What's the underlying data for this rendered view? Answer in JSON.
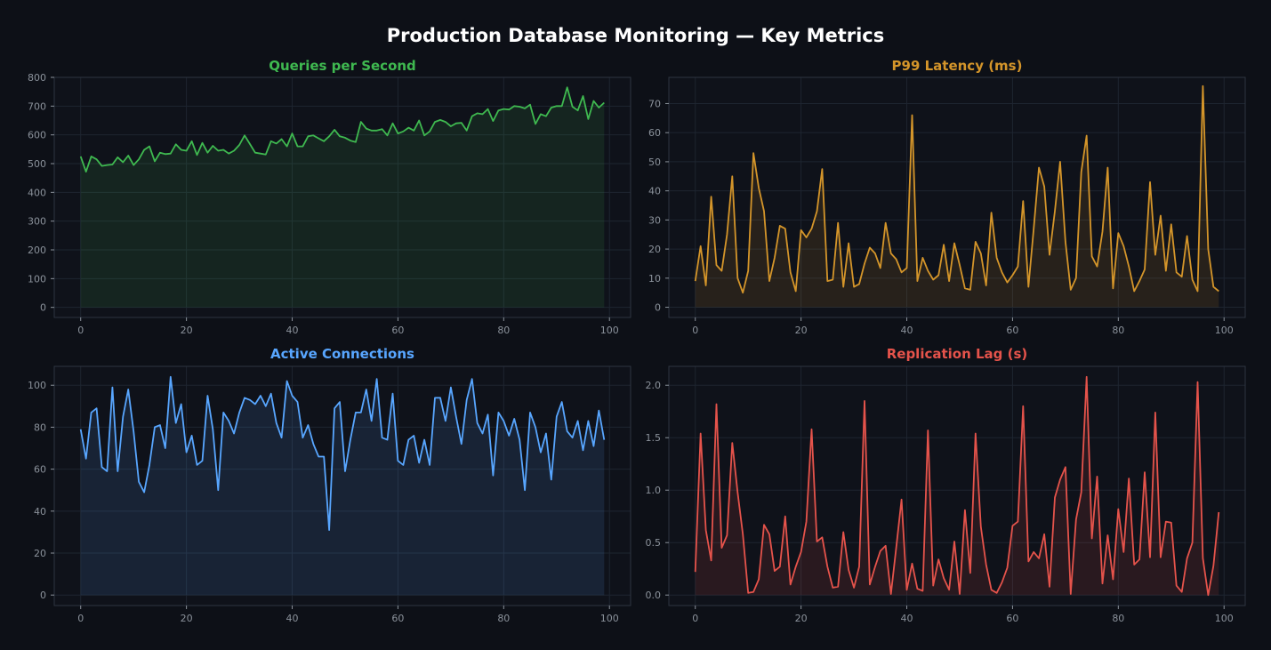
{
  "dashboard": {
    "title": "Production Database Monitoring — Key Metrics"
  },
  "chart_data": [
    {
      "type": "area",
      "title": "Queries per Second",
      "xlabel": "",
      "ylabel": "",
      "color": "#3fb950",
      "xlim": [
        -5,
        104
      ],
      "ylim": [
        -35,
        800
      ],
      "xticks": [
        0,
        20,
        40,
        60,
        80,
        100
      ],
      "yticks": [
        0,
        100,
        200,
        300,
        400,
        500,
        600,
        700,
        800
      ],
      "grid": true,
      "legend": "none",
      "x": [
        0,
        1,
        2,
        3,
        4,
        5,
        6,
        7,
        8,
        9,
        10,
        11,
        12,
        13,
        14,
        15,
        16,
        17,
        18,
        19,
        20,
        21,
        22,
        23,
        24,
        25,
        26,
        27,
        28,
        29,
        30,
        31,
        32,
        33,
        34,
        35,
        36,
        37,
        38,
        39,
        40,
        41,
        42,
        43,
        44,
        45,
        46,
        47,
        48,
        49,
        50,
        51,
        52,
        53,
        54,
        55,
        56,
        57,
        58,
        59,
        60,
        61,
        62,
        63,
        64,
        65,
        66,
        67,
        68,
        69,
        70,
        71,
        72,
        73,
        74,
        75,
        76,
        77,
        78,
        79,
        80,
        81,
        82,
        83,
        84,
        85,
        86,
        87,
        88,
        89,
        90,
        91,
        92,
        93,
        94,
        95,
        96,
        97,
        98,
        99
      ],
      "values": [
        525,
        472,
        525,
        515,
        492,
        495,
        497,
        522,
        505,
        528,
        495,
        515,
        548,
        560,
        508,
        538,
        533,
        535,
        567,
        548,
        545,
        578,
        530,
        572,
        538,
        562,
        545,
        548,
        535,
        545,
        565,
        598,
        568,
        538,
        535,
        532,
        578,
        570,
        585,
        560,
        605,
        560,
        560,
        595,
        598,
        588,
        578,
        595,
        618,
        595,
        590,
        580,
        575,
        645,
        622,
        615,
        615,
        620,
        598,
        640,
        605,
        612,
        625,
        615,
        650,
        598,
        612,
        645,
        652,
        645,
        630,
        640,
        642,
        615,
        665,
        675,
        672,
        690,
        648,
        685,
        690,
        688,
        700,
        698,
        692,
        705,
        638,
        672,
        665,
        695,
        700,
        700,
        765,
        698,
        685,
        735,
        655,
        718,
        695,
        712
      ]
    },
    {
      "type": "area",
      "title": "P99 Latency (ms)",
      "xlabel": "",
      "ylabel": "",
      "color": "#d4952a",
      "xlim": [
        -5,
        104
      ],
      "ylim": [
        -3.5,
        79
      ],
      "xticks": [
        0,
        20,
        40,
        60,
        80,
        100
      ],
      "yticks": [
        0,
        10,
        20,
        30,
        40,
        50,
        60,
        70
      ],
      "grid": true,
      "legend": "none",
      "x": [
        0,
        1,
        2,
        3,
        4,
        5,
        6,
        7,
        8,
        9,
        10,
        11,
        12,
        13,
        14,
        15,
        16,
        17,
        18,
        19,
        20,
        21,
        22,
        23,
        24,
        25,
        26,
        27,
        28,
        29,
        30,
        31,
        32,
        33,
        34,
        35,
        36,
        37,
        38,
        39,
        40,
        41,
        42,
        43,
        44,
        45,
        46,
        47,
        48,
        49,
        50,
        51,
        52,
        53,
        54,
        55,
        56,
        57,
        58,
        59,
        60,
        61,
        62,
        63,
        64,
        65,
        66,
        67,
        68,
        69,
        70,
        71,
        72,
        73,
        74,
        75,
        76,
        77,
        78,
        79,
        80,
        81,
        82,
        83,
        84,
        85,
        86,
        87,
        88,
        89,
        90,
        91,
        92,
        93,
        94,
        95,
        96,
        97,
        98,
        99
      ],
      "values": [
        9,
        21,
        7.5,
        38,
        14.5,
        12.5,
        25,
        45,
        10,
        5,
        12.5,
        53,
        41,
        33,
        9,
        17,
        28,
        27,
        12,
        5.5,
        26.5,
        24,
        27,
        33,
        47.5,
        9,
        9.5,
        29,
        7,
        22,
        7,
        8,
        15,
        20.5,
        18.5,
        13.5,
        29,
        18.5,
        16.5,
        12,
        13.5,
        66,
        9,
        17,
        12.5,
        9.5,
        11,
        21.5,
        9,
        22,
        14.5,
        6.5,
        6,
        22.5,
        18.5,
        7.5,
        32.5,
        17,
        12,
        8.5,
        11,
        14,
        36.5,
        7,
        27,
        48,
        41.5,
        18,
        33,
        50,
        22.5,
        6,
        10,
        46.5,
        59,
        17.5,
        14,
        26,
        48,
        6.5,
        25.5,
        21,
        14,
        5.5,
        9,
        13,
        43,
        18,
        31.5,
        12.5,
        28.5,
        12,
        10.5,
        24.5,
        9.5,
        5.5,
        76,
        20,
        7,
        5.5
      ]
    },
    {
      "type": "area",
      "title": "Active Connections",
      "xlabel": "",
      "ylabel": "",
      "color": "#58a6ff",
      "xlim": [
        -5,
        104
      ],
      "ylim": [
        -5,
        109
      ],
      "xticks": [
        0,
        20,
        40,
        60,
        80,
        100
      ],
      "yticks": [
        0,
        20,
        40,
        60,
        80,
        100
      ],
      "grid": true,
      "legend": "none",
      "x": [
        0,
        1,
        2,
        3,
        4,
        5,
        6,
        7,
        8,
        9,
        10,
        11,
        12,
        13,
        14,
        15,
        16,
        17,
        18,
        19,
        20,
        21,
        22,
        23,
        24,
        25,
        26,
        27,
        28,
        29,
        30,
        31,
        32,
        33,
        34,
        35,
        36,
        37,
        38,
        39,
        40,
        41,
        42,
        43,
        44,
        45,
        46,
        47,
        48,
        49,
        50,
        51,
        52,
        53,
        54,
        55,
        56,
        57,
        58,
        59,
        60,
        61,
        62,
        63,
        64,
        65,
        66,
        67,
        68,
        69,
        70,
        71,
        72,
        73,
        74,
        75,
        76,
        77,
        78,
        79,
        80,
        81,
        82,
        83,
        84,
        85,
        86,
        87,
        88,
        89,
        90,
        91,
        92,
        93,
        94,
        95,
        96,
        97,
        98,
        99
      ],
      "values": [
        79,
        65,
        87,
        89,
        61,
        59,
        99,
        59,
        85,
        98,
        78,
        54,
        49,
        62,
        80,
        81,
        70,
        104,
        82,
        91,
        68,
        76,
        62,
        64,
        95,
        79,
        50,
        87,
        83,
        77,
        87,
        94,
        93,
        91,
        95,
        90,
        96,
        82,
        75,
        102,
        95,
        92,
        75,
        81,
        72,
        66,
        66,
        31,
        89,
        92,
        59,
        74,
        87,
        87,
        98,
        83,
        103,
        75,
        74,
        96,
        64,
        62,
        74,
        76,
        63,
        74,
        62,
        94,
        94,
        83,
        99,
        85,
        72,
        93,
        103,
        82,
        77,
        86,
        57,
        87,
        83,
        76,
        84,
        74,
        50,
        87,
        80,
        68,
        77,
        55,
        85,
        92,
        78,
        75,
        83,
        69,
        83,
        71,
        88,
        74
      ]
    },
    {
      "type": "area",
      "title": "Replication Lag (s)",
      "xlabel": "",
      "ylabel": "",
      "color": "#e5534b",
      "xlim": [
        -5,
        104
      ],
      "ylim": [
        -0.1,
        2.18
      ],
      "xticks": [
        0,
        20,
        40,
        60,
        80,
        100
      ],
      "yticks": [
        0.0,
        0.5,
        1.0,
        1.5,
        2.0
      ],
      "grid": true,
      "legend": "none",
      "x": [
        0,
        1,
        2,
        3,
        4,
        5,
        6,
        7,
        8,
        9,
        10,
        11,
        12,
        13,
        14,
        15,
        16,
        17,
        18,
        19,
        20,
        21,
        22,
        23,
        24,
        25,
        26,
        27,
        28,
        29,
        30,
        31,
        32,
        33,
        34,
        35,
        36,
        37,
        38,
        39,
        40,
        41,
        42,
        43,
        44,
        45,
        46,
        47,
        48,
        49,
        50,
        51,
        52,
        53,
        54,
        55,
        56,
        57,
        58,
        59,
        60,
        61,
        62,
        63,
        64,
        65,
        66,
        67,
        68,
        69,
        70,
        71,
        72,
        73,
        74,
        75,
        76,
        77,
        78,
        79,
        80,
        81,
        82,
        83,
        84,
        85,
        86,
        87,
        88,
        89,
        90,
        91,
        92,
        93,
        94,
        95,
        96,
        97,
        98,
        99
      ],
      "values": [
        0.22,
        1.54,
        0.62,
        0.33,
        1.82,
        0.45,
        0.57,
        1.45,
        0.98,
        0.58,
        0.02,
        0.03,
        0.15,
        0.67,
        0.58,
        0.23,
        0.27,
        0.75,
        0.1,
        0.27,
        0.41,
        0.7,
        1.58,
        0.51,
        0.55,
        0.27,
        0.07,
        0.08,
        0.6,
        0.24,
        0.07,
        0.27,
        1.85,
        0.1,
        0.27,
        0.42,
        0.47,
        0.01,
        0.45,
        0.91,
        0.05,
        0.3,
        0.06,
        0.04,
        1.57,
        0.09,
        0.34,
        0.16,
        0.05,
        0.51,
        0.01,
        0.81,
        0.21,
        1.54,
        0.65,
        0.29,
        0.05,
        0.02,
        0.12,
        0.26,
        0.66,
        0.7,
        1.8,
        0.32,
        0.41,
        0.35,
        0.58,
        0.08,
        0.93,
        1.1,
        1.22,
        0.01,
        0.72,
        0.98,
        2.08,
        0.54,
        1.13,
        0.11,
        0.57,
        0.15,
        0.82,
        0.41,
        1.11,
        0.29,
        0.34,
        1.17,
        0.36,
        1.74,
        0.36,
        0.7,
        0.69,
        0.09,
        0.03,
        0.35,
        0.5,
        2.03,
        0.35,
        0.0,
        0.28,
        0.79
      ]
    }
  ]
}
